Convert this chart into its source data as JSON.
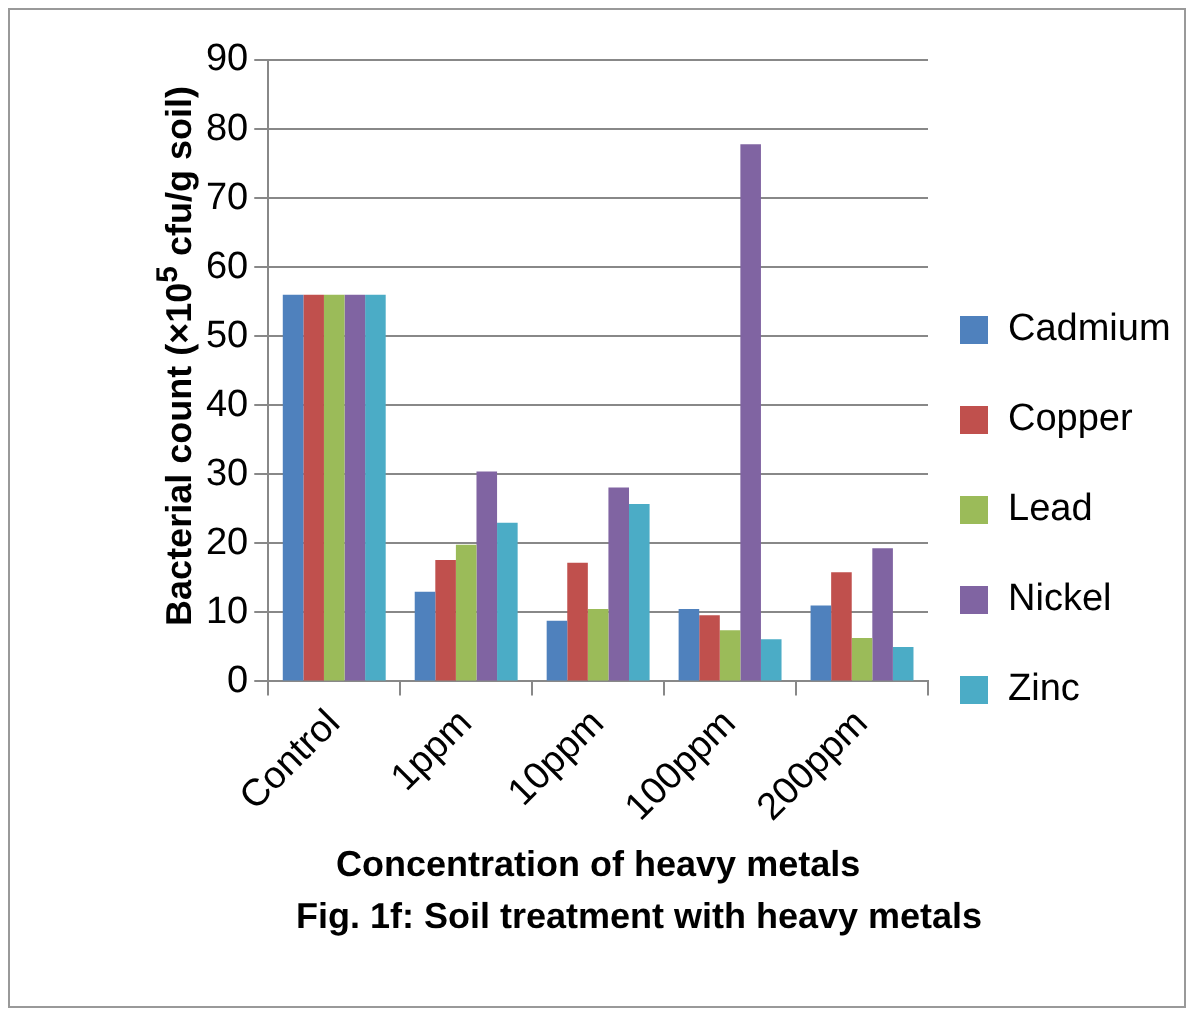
{
  "chart_data": {
    "type": "bar",
    "xlabel": "Concentration of heavy metals",
    "ylabel": "Bacterial count (×10$^{5}$ cfu/g soil)",
    "annotations": [
      "Fig. 1f: Soil treatment with heavy metals"
    ],
    "categories": [
      "Control",
      "1ppm",
      "10ppm",
      "100ppm",
      "200ppm"
    ],
    "series": [
      {
        "name": "Cadmium",
        "color": "#4f81bd",
        "values": [
          56,
          13,
          8.8,
          10.5,
          11
        ]
      },
      {
        "name": "Copper",
        "color": "#c0504d",
        "values": [
          56,
          17.6,
          17.2,
          9.6,
          15.8
        ]
      },
      {
        "name": "Lead",
        "color": "#9bbb59",
        "values": [
          56,
          19.8,
          10.5,
          7.4,
          6.3
        ]
      },
      {
        "name": "Nickel",
        "color": "#8064a2",
        "values": [
          56,
          30.4,
          28.1,
          77.8,
          19.3
        ]
      },
      {
        "name": "Zinc",
        "color": "#4bacc6",
        "values": [
          56,
          23,
          25.7,
          6.1,
          5
        ]
      }
    ],
    "ylim": [
      0,
      90
    ],
    "yticks": [
      0,
      10,
      20,
      30,
      40,
      50,
      60,
      70,
      80,
      90
    ],
    "grid": "y",
    "legend": "right"
  }
}
